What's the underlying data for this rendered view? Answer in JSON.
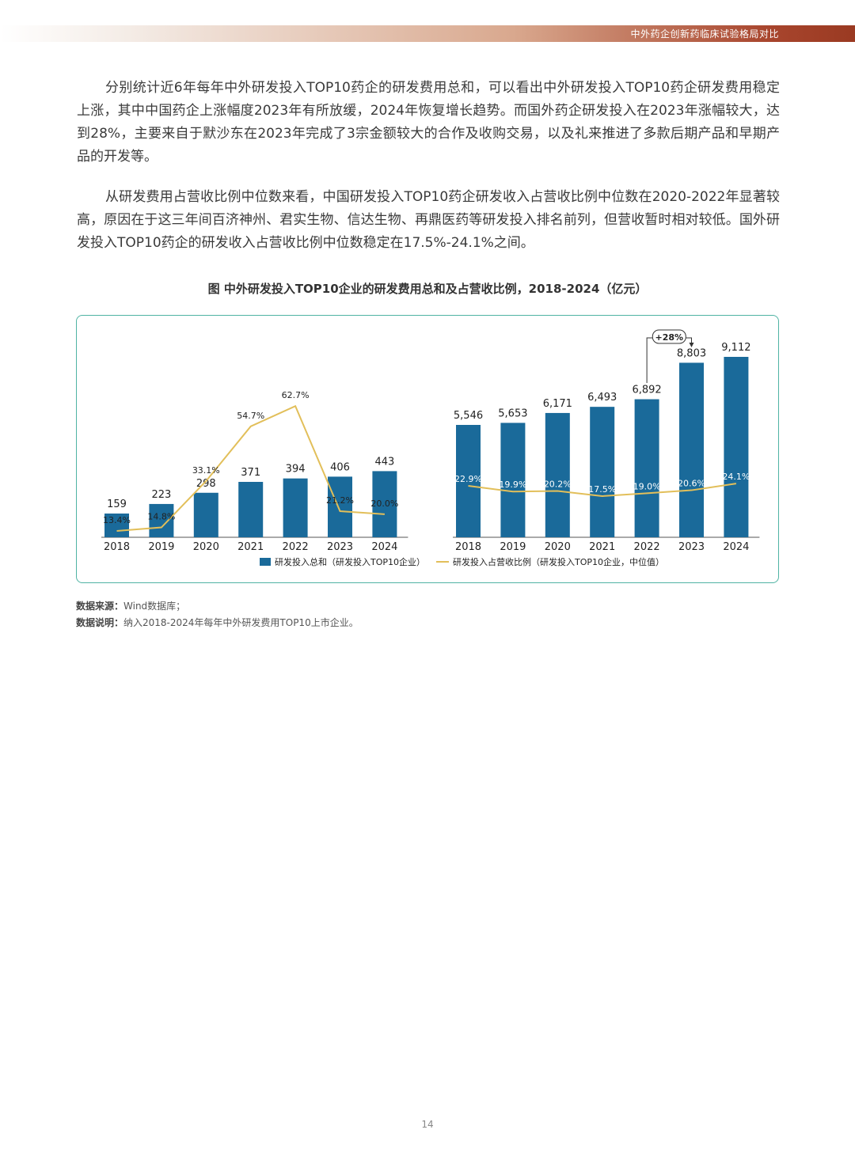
{
  "header": {
    "title": "中外药企创新药临床试验格局对比"
  },
  "paragraphs": [
    "分别统计近6年每年中外研发投入TOP10药企的研发费用总和，可以看出中外研发投入TOP10药企研发费用稳定上涨，其中中国药企上涨幅度2023年有所放缓，2024年恢复增长趋势。而国外药企研发投入在2023年涨幅较大，达到28%，主要来自于默沙东在2023年完成了3宗金额较大的合作及收购交易，以及礼来推进了多款后期产品和早期产品的开发等。",
    "从研发费用占营收比例中位数来看，中国研发投入TOP10药企研发收入占营收比例中位数在2020-2022年显著较高，原因在于这三年间百济神州、君实生物、信达生物、再鼎医药等研发投入排名前列，但营收暂时相对较低。国外研发投入TOP10药企的研发收入占营收比例中位数稳定在17.5%-24.1%之间。"
  ],
  "figure": {
    "title": "图 中外研发投入TOP10企业的研发费用总和及占营收比例，2018-2024（亿元）"
  },
  "chart_data": [
    {
      "type": "bar",
      "categories": [
        "2018",
        "2019",
        "2020",
        "2021",
        "2022",
        "2023",
        "2024"
      ],
      "series": [
        {
          "name": "研发投入总和（研发投入TOP10企业）",
          "type": "bar",
          "values": [
            159,
            223,
            298,
            371,
            394,
            406,
            443
          ],
          "labels": [
            "159",
            "223",
            "298",
            "371",
            "394",
            "406",
            "443"
          ]
        },
        {
          "name": "研发投入占营收比例（研发投入TOP10企业，中位值）",
          "type": "line",
          "values": [
            13.4,
            14.8,
            33.1,
            54.7,
            62.7,
            21.2,
            20.0
          ],
          "labels": [
            "13.4%",
            "14.8%",
            "33.1%",
            "54.7%",
            "62.7%",
            "21.2%",
            "20.0%"
          ]
        }
      ]
    },
    {
      "type": "bar",
      "categories": [
        "2018",
        "2019",
        "2020",
        "2021",
        "2022",
        "2023",
        "2024"
      ],
      "series": [
        {
          "name": "研发投入总和（研发投入TOP10企业）",
          "type": "bar",
          "values": [
            5546,
            5653,
            6171,
            6493,
            6892,
            8803,
            9112
          ],
          "labels": [
            "5,546",
            "5,653",
            "6,171",
            "6,493",
            "6,892",
            "8,803",
            "9,112"
          ]
        },
        {
          "name": "研发投入占营收比例（研发投入TOP10企业，中位值）",
          "type": "line",
          "values": [
            22.9,
            19.9,
            20.2,
            17.5,
            19.0,
            20.6,
            24.1
          ],
          "labels": [
            "22.9%",
            "19.9%",
            "20.2%",
            "17.5%",
            "19.0%",
            "20.6%",
            "24.1%"
          ]
        }
      ],
      "annotations": [
        {
          "text": "+28%",
          "from": "2022",
          "to": "2023"
        }
      ]
    }
  ],
  "legend": {
    "bar_label": "研发投入总和（研发投入TOP10企业）",
    "line_label": "研发投入占营收比例（研发投入TOP10企业，中位值）"
  },
  "colors": {
    "bar": "#1a6a9a",
    "line": "#e2bf5a",
    "border": "#4fb3a3",
    "header_dark": "#9a3a22"
  },
  "notes": {
    "source_label": "数据来源：",
    "source_text": "Wind数据库；",
    "desc_label": "数据说明：",
    "desc_text": "纳入2018-2024年每年中外研发费用TOP10上市企业。"
  },
  "page_number": "14"
}
